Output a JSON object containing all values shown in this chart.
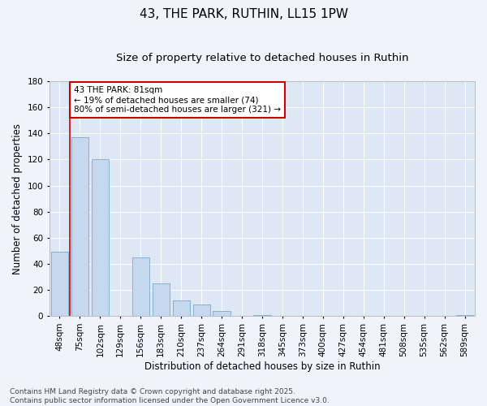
{
  "title": "43, THE PARK, RUTHIN, LL15 1PW",
  "subtitle": "Size of property relative to detached houses in Ruthin",
  "xlabel": "Distribution of detached houses by size in Ruthin",
  "ylabel": "Number of detached properties",
  "annotation_line1": "43 THE PARK: 81sqm",
  "annotation_line2": "← 19% of detached houses are smaller (74)",
  "annotation_line3": "80% of semi-detached houses are larger (321) →",
  "categories": [
    "48sqm",
    "75sqm",
    "102sqm",
    "129sqm",
    "156sqm",
    "183sqm",
    "210sqm",
    "237sqm",
    "264sqm",
    "291sqm",
    "318sqm",
    "345sqm",
    "373sqm",
    "400sqm",
    "427sqm",
    "454sqm",
    "481sqm",
    "508sqm",
    "535sqm",
    "562sqm",
    "589sqm"
  ],
  "values": [
    49,
    137,
    120,
    0,
    45,
    25,
    12,
    9,
    4,
    0,
    1,
    0,
    0,
    0,
    0,
    0,
    0,
    0,
    0,
    0,
    1
  ],
  "bar_color": "#c5d8ed",
  "bar_edge_color": "#7aaac8",
  "vline_color": "#cc0000",
  "vline_x_index": 0.5,
  "ylim": [
    0,
    180
  ],
  "yticks": [
    0,
    20,
    40,
    60,
    80,
    100,
    120,
    140,
    160,
    180
  ],
  "background_color": "#f0f4fa",
  "plot_bg_color": "#dde8f4",
  "annotation_box_facecolor": "#ffffff",
  "annotation_box_edgecolor": "#cc0000",
  "footer_line1": "Contains HM Land Registry data © Crown copyright and database right 2025.",
  "footer_line2": "Contains public sector information licensed under the Open Government Licence v3.0.",
  "title_fontsize": 11,
  "subtitle_fontsize": 9.5,
  "axis_label_fontsize": 8.5,
  "tick_fontsize": 7.5,
  "annotation_fontsize": 7.5,
  "footer_fontsize": 6.5
}
